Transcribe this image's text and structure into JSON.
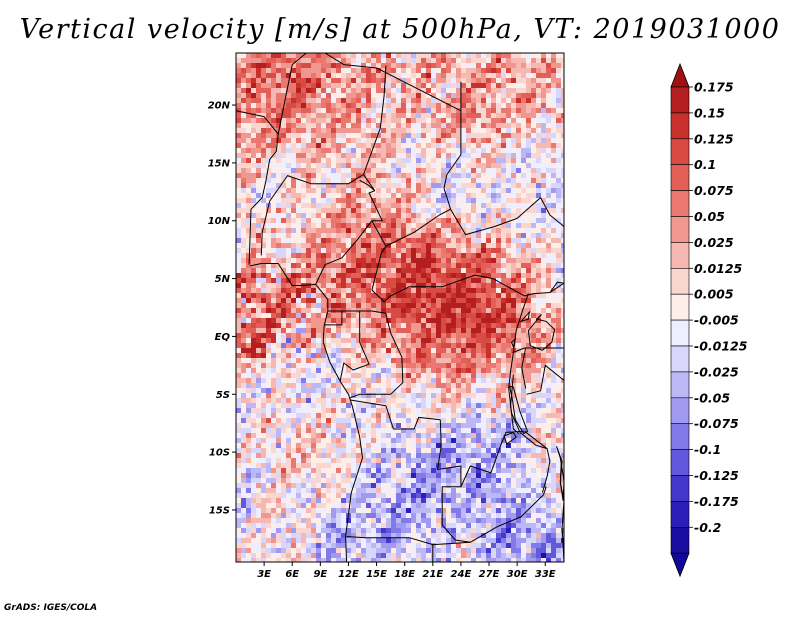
{
  "title": "Vertical velocity [m/s] at 500hPa, VT: 2019031000",
  "credit": "GrADS: IGES/COLA",
  "map": {
    "lat_labels": [
      "20N",
      "15N",
      "10N",
      "5N",
      "EQ",
      "5S",
      "10S",
      "15S"
    ],
    "lat_values": [
      20,
      15,
      10,
      5,
      0,
      -5,
      -10,
      -15
    ],
    "lon_labels": [
      "3E",
      "6E",
      "9E",
      "12E",
      "15E",
      "18E",
      "21E",
      "24E",
      "27E",
      "30E",
      "33E"
    ],
    "lon_values": [
      3,
      6,
      9,
      12,
      15,
      18,
      21,
      24,
      27,
      30,
      33
    ],
    "lon_range": [
      0,
      35
    ],
    "lat_range": [
      -19.5,
      24.5
    ]
  },
  "colorbar": {
    "labels": [
      "0.175",
      "0.15",
      "0.125",
      "0.1",
      "0.075",
      "0.05",
      "0.025",
      "0.0125",
      "0.005",
      "-0.005",
      "-0.0125",
      "-0.025",
      "-0.05",
      "-0.075",
      "-0.1",
      "-0.125",
      "-0.175",
      "-0.2"
    ],
    "colors": [
      "#b41e1e",
      "#c8302c",
      "#d84a44",
      "#e26058",
      "#ea7870",
      "#f09890",
      "#f6b8b0",
      "#fad6d0",
      "#fdeeea",
      "#eeeeff",
      "#d8d6fb",
      "#bcb8f6",
      "#a09af0",
      "#827ae8",
      "#6258dc",
      "#4438cc",
      "#2a1eb8",
      "#1a0ea0"
    ],
    "top_arrow_color": "#a01212",
    "bottom_arrow_color": "#10089a"
  }
}
